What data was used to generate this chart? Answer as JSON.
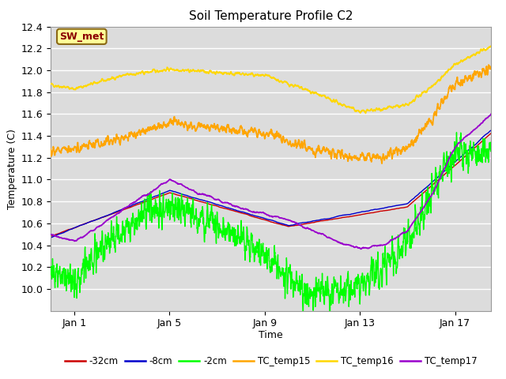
{
  "title": "Soil Temperature Profile C2",
  "xlabel": "Time",
  "ylabel": "Temperature (C)",
  "ylim": [
    9.8,
    12.4
  ],
  "xlim": [
    0,
    18.5
  ],
  "xticks": [
    1,
    5,
    9,
    13,
    17
  ],
  "xtick_labels": [
    "Jan 1",
    "Jan 5",
    "Jan 9",
    "Jan 13",
    "Jan 17"
  ],
  "yticks": [
    10.0,
    10.2,
    10.4,
    10.6,
    10.8,
    11.0,
    11.2,
    11.4,
    11.6,
    11.8,
    12.0,
    12.2,
    12.4
  ],
  "bg_color": "#dcdcdc",
  "series": {
    "TC_temp16": {
      "color": "#FFD700",
      "lw": 1.3
    },
    "TC_temp15": {
      "color": "#FFA500",
      "lw": 1.3
    },
    "TC_temp17": {
      "color": "#9900CC",
      "lw": 1.3
    },
    "neg2cm": {
      "color": "#00FF00",
      "lw": 1.0
    },
    "neg8cm": {
      "color": "#0000CC",
      "lw": 1.0
    },
    "neg32cm": {
      "color": "#CC0000",
      "lw": 1.0
    }
  },
  "legend_labels": [
    "-32cm",
    "-8cm",
    "-2cm",
    "TC_temp15",
    "TC_temp16",
    "TC_temp17"
  ],
  "legend_colors": [
    "#CC0000",
    "#0000CC",
    "#00FF00",
    "#FFA500",
    "#FFD700",
    "#9900CC"
  ],
  "annotation_text": "SW_met",
  "annotation_color": "#8B0000",
  "annotation_bg": "#FFFF99",
  "annotation_border": "#8B6914"
}
